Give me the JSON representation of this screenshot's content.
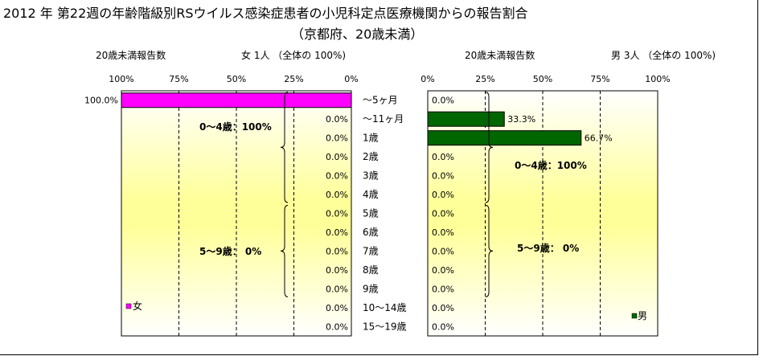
{
  "title": "2012 年 第22週の年齢階級別RSウイルス感染症患者の小児科定点医療機関からの報告割合",
  "subtitle": "（京都府、20歳未満）",
  "colors": {
    "female": "#ff00ff",
    "male": "#006600",
    "plot_bg_top": "#ffffff",
    "plot_bg_mid": "#ffff99"
  },
  "chart_data": [
    {
      "type": "bar",
      "orientation": "horizontal",
      "direction": "right-to-left",
      "header_left": "20歳未満報告数",
      "header_right": "女  1人 （全体の  100%)",
      "legend": "女",
      "legend_position": "bottom-left",
      "xlim": [
        0,
        100
      ],
      "tick_labels": [
        "100%",
        "75%",
        "50%",
        "25%",
        "0%"
      ],
      "categories": [
        "～5ヶ月",
        "～11ヶ月",
        "1歳",
        "2歳",
        "3歳",
        "4歳",
        "5歳",
        "6歳",
        "7歳",
        "8歳",
        "9歳",
        "10～14歳",
        "15～19歳"
      ],
      "value_labels": [
        "100.0%",
        "0.0%",
        "0.0%",
        "0.0%",
        "0.0%",
        "0.0%",
        "0.0%",
        "0.0%",
        "0.0%",
        "0.0%",
        "0.0%",
        "0.0%",
        "0.0%"
      ],
      "values": [
        100,
        0,
        0,
        0,
        0,
        0,
        0,
        0,
        0,
        0,
        0,
        0,
        0
      ],
      "annotations": [
        "0～4歳：100%",
        "5～9歳：  0%"
      ],
      "grid": true
    },
    {
      "type": "bar",
      "orientation": "horizontal",
      "direction": "left-to-right",
      "header_left": "20歳未満報告数",
      "header_right": "男  3人 （全体の  100%)",
      "legend": "男",
      "legend_position": "bottom-right",
      "xlim": [
        0,
        100
      ],
      "tick_labels": [
        "0%",
        "25%",
        "50%",
        "75%",
        "100%"
      ],
      "categories": [
        "～5ヶ月",
        "～11ヶ月",
        "1歳",
        "2歳",
        "3歳",
        "4歳",
        "5歳",
        "6歳",
        "7歳",
        "8歳",
        "9歳",
        "10～14歳",
        "15～19歳"
      ],
      "value_labels": [
        "0.0%",
        "33.3%",
        "66.7%",
        "0.0%",
        "0.0%",
        "0.0%",
        "0.0%",
        "0.0%",
        "0.0%",
        "0.0%",
        "0.0%",
        "0.0%",
        "0.0%"
      ],
      "values": [
        0,
        33.3,
        66.7,
        0,
        0,
        0,
        0,
        0,
        0,
        0,
        0,
        0,
        0
      ],
      "annotations": [
        "0～4歳：100%",
        "5～9歳：  0%"
      ],
      "grid": true
    }
  ]
}
